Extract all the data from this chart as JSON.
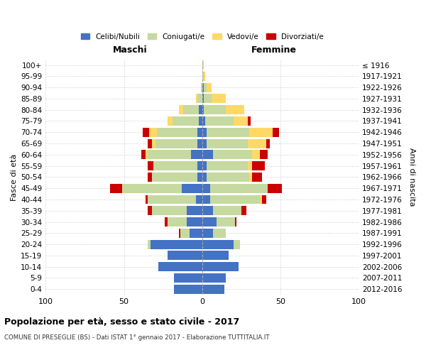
{
  "age_groups": [
    "0-4",
    "5-9",
    "10-14",
    "15-19",
    "20-24",
    "25-29",
    "30-34",
    "35-39",
    "40-44",
    "45-49",
    "50-54",
    "55-59",
    "60-64",
    "65-69",
    "70-74",
    "75-79",
    "80-84",
    "85-89",
    "90-94",
    "95-99",
    "100+"
  ],
  "birth_years": [
    "2012-2016",
    "2007-2011",
    "2002-2006",
    "1997-2001",
    "1992-1996",
    "1987-1991",
    "1982-1986",
    "1977-1981",
    "1972-1976",
    "1967-1971",
    "1962-1966",
    "1957-1961",
    "1952-1956",
    "1947-1951",
    "1942-1946",
    "1937-1941",
    "1932-1936",
    "1927-1931",
    "1922-1926",
    "1917-1921",
    "≤ 1916"
  ],
  "male": {
    "celibe": [
      18,
      18,
      28,
      22,
      33,
      8,
      10,
      10,
      4,
      13,
      3,
      3,
      7,
      3,
      3,
      2,
      2,
      0,
      0,
      0,
      0
    ],
    "coniugato": [
      0,
      0,
      0,
      0,
      2,
      6,
      12,
      22,
      31,
      38,
      29,
      28,
      28,
      27,
      26,
      17,
      10,
      3,
      1,
      0,
      0
    ],
    "vedovo": [
      0,
      0,
      0,
      0,
      0,
      0,
      0,
      0,
      0,
      0,
      0,
      0,
      1,
      2,
      5,
      3,
      3,
      1,
      0,
      0,
      0
    ],
    "divorziato": [
      0,
      0,
      0,
      0,
      0,
      1,
      2,
      3,
      1,
      8,
      3,
      4,
      3,
      3,
      4,
      0,
      0,
      0,
      0,
      0,
      0
    ]
  },
  "female": {
    "nubile": [
      14,
      15,
      23,
      17,
      20,
      7,
      9,
      7,
      5,
      5,
      3,
      3,
      7,
      3,
      3,
      2,
      1,
      1,
      1,
      0,
      0
    ],
    "coniugata": [
      0,
      0,
      0,
      0,
      4,
      8,
      12,
      18,
      32,
      37,
      27,
      26,
      25,
      26,
      27,
      18,
      14,
      5,
      2,
      1,
      0
    ],
    "vedova": [
      0,
      0,
      0,
      0,
      0,
      0,
      0,
      0,
      1,
      0,
      2,
      3,
      5,
      12,
      15,
      9,
      12,
      9,
      3,
      1,
      1
    ],
    "divorziata": [
      0,
      0,
      0,
      0,
      0,
      0,
      1,
      3,
      3,
      9,
      6,
      8,
      5,
      2,
      4,
      2,
      0,
      0,
      0,
      0,
      0
    ]
  },
  "colors": {
    "celibe": "#4472C4",
    "coniugato": "#c5d9a0",
    "vedovo": "#FFD966",
    "divorziato": "#CC0000"
  },
  "title": "Popolazione per età, sesso e stato civile - 2017",
  "subtitle": "COMUNE DI PRESEGLIE (BS) - Dati ISTAT 1° gennaio 2017 - Elaborazione TUTTITALIA.IT",
  "xlabel_left": "Maschi",
  "xlabel_right": "Femmine",
  "ylabel_left": "Fasce di età",
  "ylabel_right": "Anni di nascita",
  "xlim": 100,
  "legend_labels": [
    "Celibi/Nubili",
    "Coniugati/e",
    "Vedovi/e",
    "Divorziati/e"
  ]
}
